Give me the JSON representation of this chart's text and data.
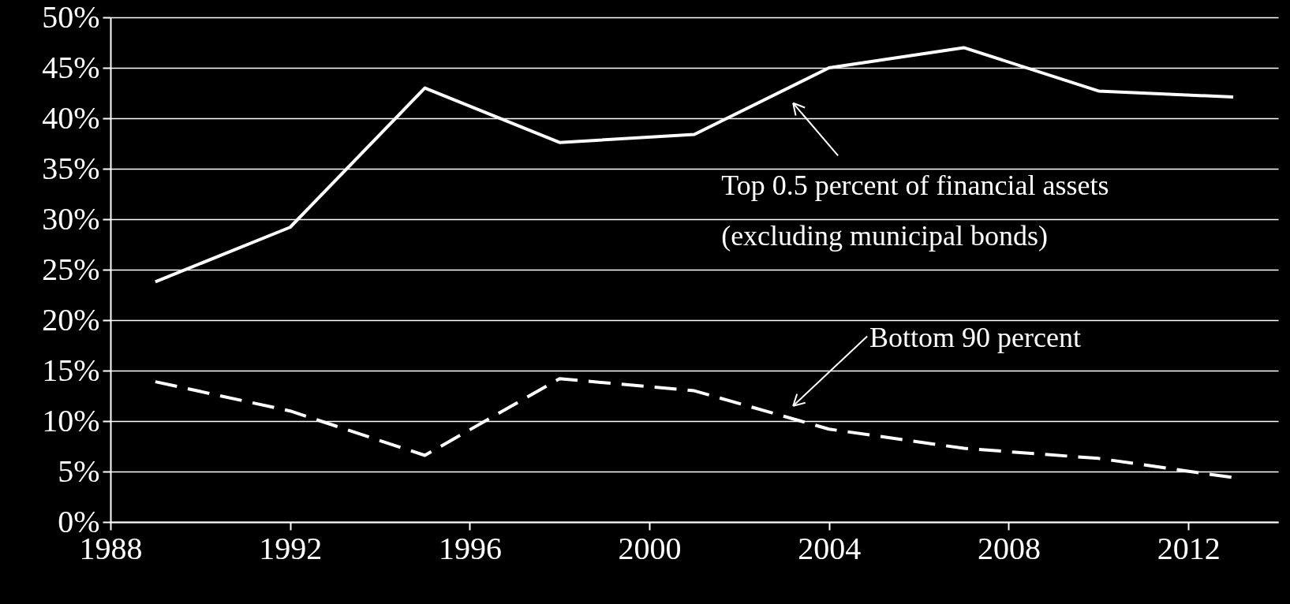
{
  "chart_data": {
    "type": "line",
    "x": [
      1989,
      1992,
      1995,
      1998,
      2001,
      2004,
      2007,
      2010,
      2013
    ],
    "series": [
      {
        "color": "#ffffff",
        "line_style": "solid",
        "values": [
          23.8,
          29.2,
          43.0,
          37.6,
          38.4,
          45.0,
          47.0,
          42.7,
          42.1
        ]
      },
      {
        "color": "#ffffff",
        "line_style": "dashed",
        "values": [
          13.9,
          11.0,
          6.6,
          14.2,
          13.0,
          9.2,
          7.3,
          6.3,
          4.4
        ]
      }
    ],
    "xlim": [
      1988,
      2014
    ],
    "xticks": [
      1988,
      1992,
      1996,
      2000,
      2004,
      2008,
      2012
    ],
    "ylim": [
      0,
      50
    ],
    "yticks": [
      {
        "value": 0,
        "label": "0%"
      },
      {
        "value": 5,
        "label": "5%"
      },
      {
        "value": 10,
        "label": "10%"
      },
      {
        "value": 15,
        "label": "15%"
      },
      {
        "value": 20,
        "label": "20%"
      },
      {
        "value": 25,
        "label": "25%"
      },
      {
        "value": 30,
        "label": "30%"
      },
      {
        "value": 35,
        "label": "35%"
      },
      {
        "value": 40,
        "label": "40%"
      },
      {
        "value": 45,
        "label": "45%"
      },
      {
        "value": 50,
        "label": "50%"
      }
    ],
    "grid": "y",
    "marker": "none",
    "annotations": [
      "Top 0.5 percent of financial assets\n(excluding municipal bonds)",
      "Bottom 90 percent"
    ]
  }
}
